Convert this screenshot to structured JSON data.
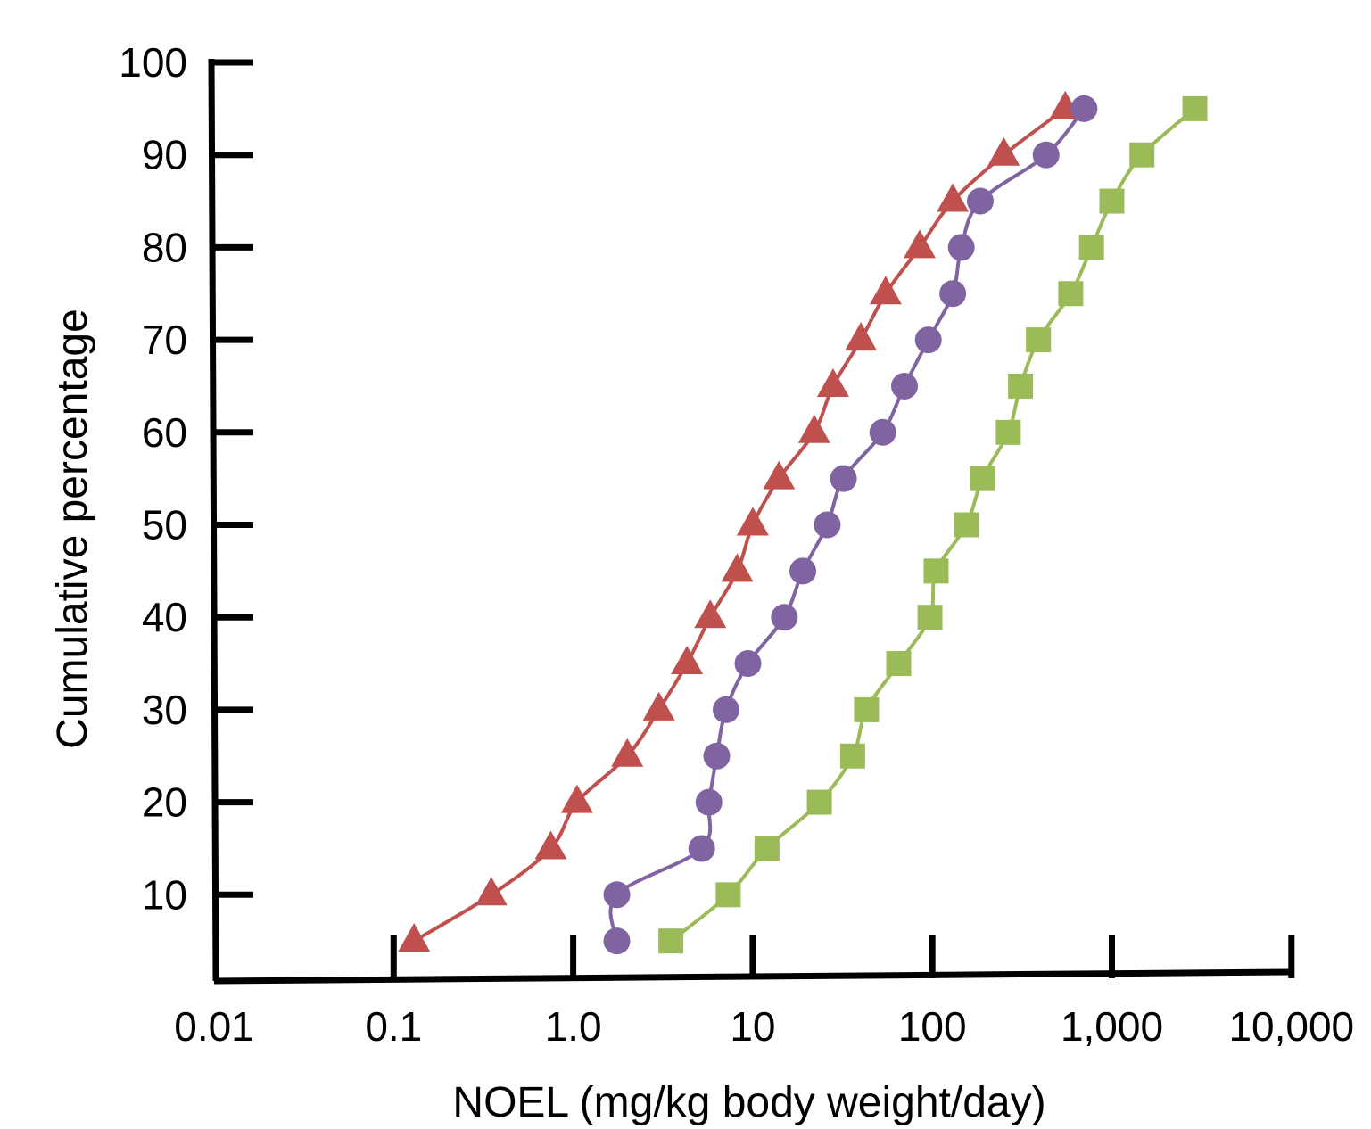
{
  "chart_data": {
    "type": "scatter",
    "xlabel": "NOEL (mg/kg body weight/day)",
    "ylabel": "Cumulative percentage",
    "x_scale": "log",
    "xlim": [
      0.01,
      10000
    ],
    "ylim": [
      0,
      100
    ],
    "x_tick_labels": [
      "0.01",
      "0.1",
      "1.0",
      "10",
      "100",
      "1,000",
      "10,000"
    ],
    "x_tick_values": [
      0.01,
      0.1,
      1,
      10,
      100,
      1000,
      10000
    ],
    "y_tick_labels": [
      "10",
      "20",
      "30",
      "40",
      "50",
      "60",
      "70",
      "80",
      "90",
      "100"
    ],
    "y_tick_values": [
      10,
      20,
      30,
      40,
      50,
      60,
      70,
      80,
      90,
      100
    ],
    "grid": false,
    "legend": "none",
    "series": [
      {
        "marker": "triangle",
        "color": "#c0504d",
        "points": [
          [
            0.13,
            5
          ],
          [
            0.35,
            10
          ],
          [
            0.75,
            15
          ],
          [
            1.05,
            20
          ],
          [
            2.0,
            25
          ],
          [
            3.0,
            30
          ],
          [
            4.3,
            35
          ],
          [
            5.8,
            40
          ],
          [
            8.2,
            45
          ],
          [
            10,
            50
          ],
          [
            14,
            55
          ],
          [
            22,
            60
          ],
          [
            28,
            65
          ],
          [
            40,
            70
          ],
          [
            55,
            75
          ],
          [
            85,
            80
          ],
          [
            130,
            85
          ],
          [
            250,
            90
          ],
          [
            550,
            95
          ]
        ]
      },
      {
        "marker": "circle",
        "color": "#8064a2",
        "points": [
          [
            1.75,
            5
          ],
          [
            1.75,
            10
          ],
          [
            5.2,
            15
          ],
          [
            5.7,
            20
          ],
          [
            6.3,
            25
          ],
          [
            7.1,
            30
          ],
          [
            9.4,
            35
          ],
          [
            15,
            40
          ],
          [
            19,
            45
          ],
          [
            26,
            50
          ],
          [
            32,
            55
          ],
          [
            53,
            60
          ],
          [
            70,
            65
          ],
          [
            95,
            70
          ],
          [
            130,
            75
          ],
          [
            145,
            80
          ],
          [
            185,
            85
          ],
          [
            430,
            90
          ],
          [
            700,
            95
          ]
        ]
      },
      {
        "marker": "square",
        "color": "#9bbb59",
        "points": [
          [
            3.5,
            5
          ],
          [
            7.3,
            10
          ],
          [
            12,
            15
          ],
          [
            23.5,
            20
          ],
          [
            36,
            25
          ],
          [
            43,
            30
          ],
          [
            65,
            35
          ],
          [
            97,
            40
          ],
          [
            105,
            45
          ],
          [
            155,
            50
          ],
          [
            190,
            55
          ],
          [
            265,
            60
          ],
          [
            310,
            65
          ],
          [
            390,
            70
          ],
          [
            590,
            75
          ],
          [
            770,
            80
          ],
          [
            1000,
            85
          ],
          [
            1470,
            90
          ],
          [
            2900,
            95
          ]
        ]
      }
    ]
  }
}
